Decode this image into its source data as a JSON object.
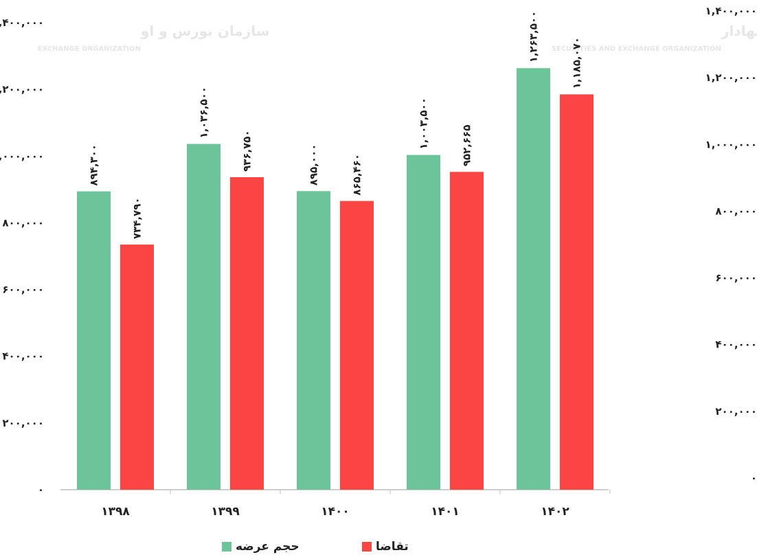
{
  "watermark": {
    "left_fa": "سازمان بورس و او",
    "left_en": "EXCHANGE ORGANIZATION",
    "right_fa": "سازمان بورس و اوراق بهادار",
    "right_en": "SECURITIES AND EXCHANGE ORGANIZATION"
  },
  "legend": {
    "supply": "حجم عرضه",
    "demand": "تقاضا"
  },
  "colors": {
    "supply": "#6cc49a",
    "demand": "#fb4444",
    "axis": "#bfbfbf",
    "text": "#222222"
  },
  "chart_data": {
    "type": "bar",
    "categories": [
      "۱۳۹۸",
      "۱۳۹۹",
      "۱۴۰۰",
      "۱۴۰۱",
      "۱۴۰۲"
    ],
    "series": [
      {
        "name": "حجم عرضه",
        "values": [
          894300,
          1036500,
          895000,
          1003500,
          1263500
        ],
        "labels": [
          "۸۹۴,۳۰۰",
          "۱,۰۳۶,۵۰۰",
          "۸۹۵,۰۰۰",
          "۱,۰۰۳,۵۰۰",
          "۱,۲۶۳,۵۰۰"
        ]
      },
      {
        "name": "تقاضا",
        "values": [
          734790,
          936750,
          865460,
          952665,
          1185070
        ],
        "labels": [
          "۷۳۴,۷۹۰",
          "۹۳۶,۷۵۰",
          "۸۶۵,۴۶۰",
          "۹۵۲,۶۶۵",
          "۱,۱۸۵,۰۷۰"
        ]
      }
    ],
    "ylim": [
      0,
      1400000
    ],
    "yticks": [
      {
        "value": 0,
        "label": "۰"
      },
      {
        "value": 200000,
        "label": "۲۰۰,۰۰۰"
      },
      {
        "value": 400000,
        "label": "۴۰۰,۰۰۰"
      },
      {
        "value": 600000,
        "label": "۶۰۰,۰۰۰"
      },
      {
        "value": 800000,
        "label": "۸۰۰,۰۰۰"
      },
      {
        "value": 1000000,
        "label": "۱,۰۰۰,۰۰۰"
      },
      {
        "value": 1200000,
        "label": "۱,۲۰۰,۰۰۰"
      },
      {
        "value": 1400000,
        "label": "۱,۴۰۰,۰۰۰"
      }
    ],
    "grid": false,
    "legend_position": "bottom"
  }
}
